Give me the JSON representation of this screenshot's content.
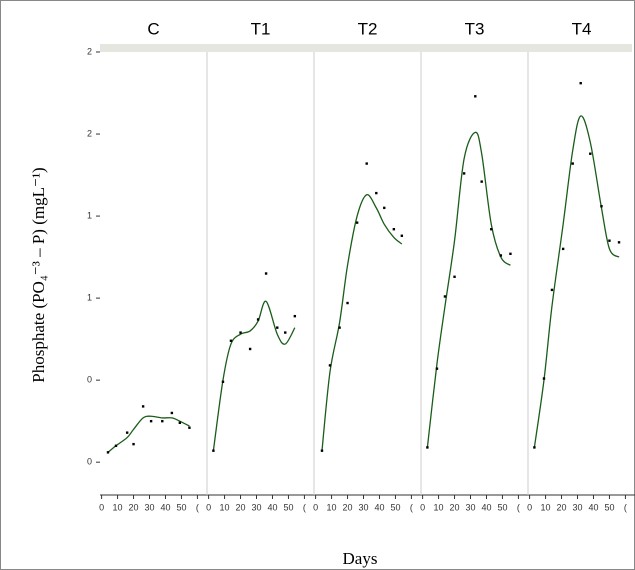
{
  "chart_data": {
    "type": "scatter",
    "x_label": "Days",
    "y_label": "Phosphate (PO₄⁻³ – P) (mgL⁻¹)",
    "xlim": [
      -1,
      66
    ],
    "xticks": [
      0,
      10,
      20,
      30,
      40,
      50,
      {
        "value": 60,
        "label": "("
      }
    ],
    "ylim": [
      -0.2,
      2.5
    ],
    "yticks": [
      0,
      {
        "value": 0.5,
        "label": "0"
      },
      1,
      {
        "value": 1.5,
        "label": "1"
      },
      2,
      {
        "value": 2.5,
        "label": "2"
      }
    ],
    "point_color": "#000000",
    "line_color": "#1a5c1a",
    "panels": [
      {
        "title": "C",
        "x": [
          4,
          9,
          16,
          20,
          26,
          31,
          38,
          44,
          49,
          55
        ],
        "values": [
          0.06,
          0.1,
          0.18,
          0.11,
          0.34,
          0.25,
          0.25,
          0.3,
          0.24,
          0.21
        ],
        "fit": [
          0.06,
          0.1,
          0.15,
          0.2,
          0.27,
          0.28,
          0.27,
          0.27,
          0.25,
          0.22
        ]
      },
      {
        "title": "T1",
        "x": [
          3,
          9,
          14,
          20,
          26,
          31,
          36,
          43,
          48,
          54
        ],
        "values": [
          0.07,
          0.49,
          0.74,
          0.79,
          0.69,
          0.87,
          1.15,
          0.82,
          0.79,
          0.89
        ],
        "fit": [
          0.07,
          0.5,
          0.72,
          0.78,
          0.8,
          0.86,
          0.98,
          0.78,
          0.72,
          0.82
        ]
      },
      {
        "title": "T2",
        "x": [
          4,
          9,
          15,
          20,
          26,
          32,
          38,
          43,
          49,
          54
        ],
        "values": [
          0.07,
          0.59,
          0.82,
          0.97,
          1.46,
          1.82,
          1.64,
          1.55,
          1.42,
          1.38
        ],
        "fit": [
          0.07,
          0.55,
          0.85,
          1.2,
          1.5,
          1.63,
          1.55,
          1.45,
          1.37,
          1.33
        ]
      },
      {
        "title": "T3",
        "x": [
          3,
          9,
          14,
          20,
          26,
          33,
          37,
          43,
          49,
          55
        ],
        "values": [
          0.09,
          0.57,
          1.01,
          1.13,
          1.76,
          2.23,
          1.71,
          1.42,
          1.26,
          1.27
        ],
        "fit": [
          0.09,
          0.6,
          0.95,
          1.35,
          1.85,
          2.01,
          1.88,
          1.45,
          1.25,
          1.2
        ]
      },
      {
        "title": "T4",
        "x": [
          3,
          9,
          14,
          21,
          27,
          32,
          38,
          45,
          50,
          56
        ],
        "values": [
          0.09,
          0.51,
          1.05,
          1.3,
          1.82,
          2.31,
          1.88,
          1.56,
          1.35,
          1.34
        ],
        "fit": [
          0.09,
          0.5,
          0.95,
          1.45,
          1.9,
          2.11,
          1.95,
          1.55,
          1.3,
          1.25
        ]
      }
    ]
  }
}
